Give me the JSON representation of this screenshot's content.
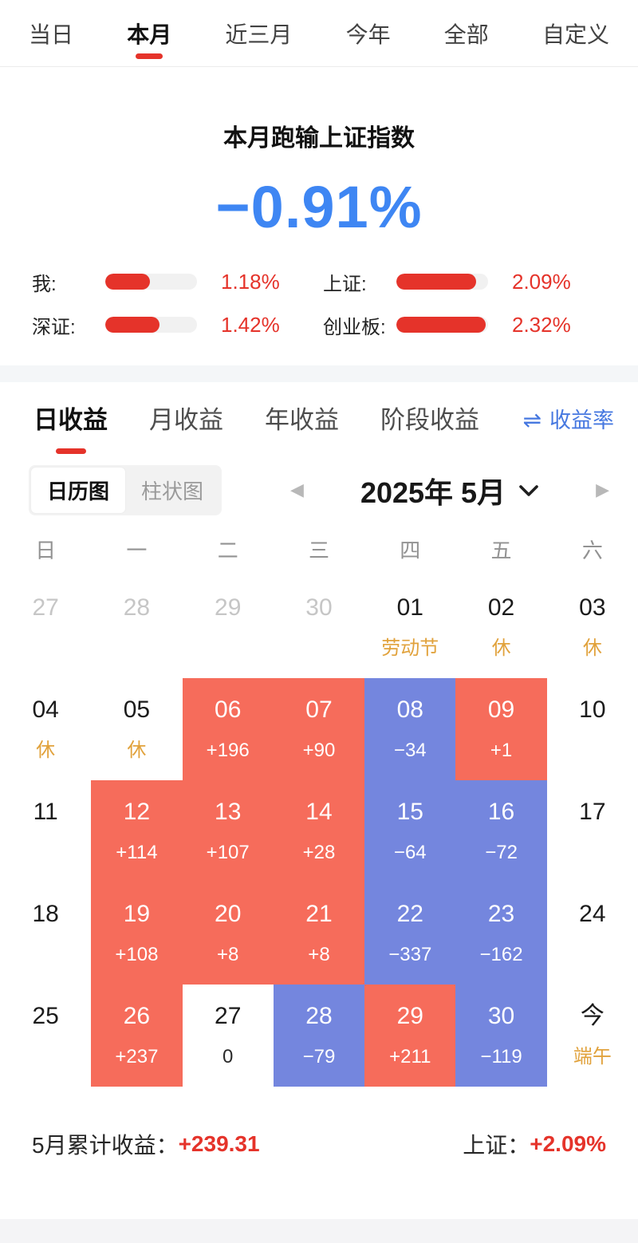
{
  "colors": {
    "accent_red": "#E5332A",
    "gain_cell_red": "#F66C5B",
    "loss_cell_blue": "#7486DE",
    "highlight_blue": "#3E86F3",
    "link_blue": "#4678E0",
    "holiday_orange": "#E1A23C"
  },
  "tabbar": {
    "items": [
      {
        "label": "当日",
        "cls": ""
      },
      {
        "label": "本月",
        "cls": "active"
      },
      {
        "label": "近三月",
        "cls": ""
      },
      {
        "label": "今年",
        "cls": ""
      },
      {
        "label": "全部",
        "cls": ""
      },
      {
        "label": "自定义",
        "cls": ""
      }
    ]
  },
  "summary": {
    "title": "本月跑输上证指数",
    "big_value": "−0.91%",
    "stats": [
      {
        "label": "我:",
        "value": "1.18%",
        "fill_pct": 49
      },
      {
        "label": "上证:",
        "value": "2.09%",
        "fill_pct": 87
      },
      {
        "label": "深证:",
        "value": "1.42%",
        "fill_pct": 59
      },
      {
        "label": "创业板:",
        "value": "2.32%",
        "fill_pct": 97
      }
    ]
  },
  "returns": {
    "tabs": [
      {
        "label": "日收益",
        "cls": "active"
      },
      {
        "label": "月收益",
        "cls": ""
      },
      {
        "label": "年收益",
        "cls": ""
      },
      {
        "label": "阶段收益",
        "cls": ""
      }
    ],
    "toggle_label": "收益率",
    "swap_icon": "⇌"
  },
  "controls": {
    "view_options": [
      {
        "label": "日历图",
        "cls": "on"
      },
      {
        "label": "柱状图",
        "cls": ""
      }
    ],
    "month_label": "2025年 5月",
    "prev_icon": "◀",
    "next_icon": "▶"
  },
  "calendar": {
    "weekdays": [
      "日",
      "一",
      "二",
      "三",
      "四",
      "五",
      "六"
    ],
    "rows": [
      {
        "cells": [
          {
            "date": "27",
            "cls": "prev",
            "sub": "",
            "subcls": ""
          },
          {
            "date": "28",
            "cls": "prev",
            "sub": "",
            "subcls": ""
          },
          {
            "date": "29",
            "cls": "prev",
            "sub": "",
            "subcls": ""
          },
          {
            "date": "30",
            "cls": "prev",
            "sub": "",
            "subcls": ""
          },
          {
            "date": "01",
            "cls": "",
            "sub": "劳动节",
            "subcls": "note"
          },
          {
            "date": "02",
            "cls": "",
            "sub": "休",
            "subcls": "note"
          },
          {
            "date": "03",
            "cls": "",
            "sub": "休",
            "subcls": "note"
          }
        ]
      },
      {
        "cells": [
          {
            "date": "04",
            "cls": "",
            "sub": "休",
            "subcls": "note"
          },
          {
            "date": "05",
            "cls": "",
            "sub": "休",
            "subcls": "note"
          },
          {
            "date": "06",
            "cls": "gain",
            "sub": "+196",
            "subcls": ""
          },
          {
            "date": "07",
            "cls": "gain",
            "sub": "+90",
            "subcls": ""
          },
          {
            "date": "08",
            "cls": "loss",
            "sub": "−34",
            "subcls": ""
          },
          {
            "date": "09",
            "cls": "gain",
            "sub": "+1",
            "subcls": ""
          },
          {
            "date": "10",
            "cls": "",
            "sub": "",
            "subcls": ""
          }
        ]
      },
      {
        "cells": [
          {
            "date": "11",
            "cls": "",
            "sub": "",
            "subcls": ""
          },
          {
            "date": "12",
            "cls": "gain",
            "sub": "+114",
            "subcls": ""
          },
          {
            "date": "13",
            "cls": "gain",
            "sub": "+107",
            "subcls": ""
          },
          {
            "date": "14",
            "cls": "gain",
            "sub": "+28",
            "subcls": ""
          },
          {
            "date": "15",
            "cls": "loss",
            "sub": "−64",
            "subcls": ""
          },
          {
            "date": "16",
            "cls": "loss",
            "sub": "−72",
            "subcls": ""
          },
          {
            "date": "17",
            "cls": "",
            "sub": "",
            "subcls": ""
          }
        ]
      },
      {
        "cells": [
          {
            "date": "18",
            "cls": "",
            "sub": "",
            "subcls": ""
          },
          {
            "date": "19",
            "cls": "gain",
            "sub": "+108",
            "subcls": ""
          },
          {
            "date": "20",
            "cls": "gain",
            "sub": "+8",
            "subcls": ""
          },
          {
            "date": "21",
            "cls": "gain",
            "sub": "+8",
            "subcls": ""
          },
          {
            "date": "22",
            "cls": "loss",
            "sub": "−337",
            "subcls": ""
          },
          {
            "date": "23",
            "cls": "loss",
            "sub": "−162",
            "subcls": ""
          },
          {
            "date": "24",
            "cls": "",
            "sub": "",
            "subcls": ""
          }
        ]
      },
      {
        "cells": [
          {
            "date": "25",
            "cls": "",
            "sub": "",
            "subcls": ""
          },
          {
            "date": "26",
            "cls": "gain",
            "sub": "+237",
            "subcls": ""
          },
          {
            "date": "27",
            "cls": "flat",
            "sub": "0",
            "subcls": ""
          },
          {
            "date": "28",
            "cls": "loss",
            "sub": "−79",
            "subcls": ""
          },
          {
            "date": "29",
            "cls": "gain",
            "sub": "+211",
            "subcls": ""
          },
          {
            "date": "30",
            "cls": "loss",
            "sub": "−119",
            "subcls": ""
          },
          {
            "date": "今",
            "cls": "",
            "sub": "端午",
            "subcls": "note"
          }
        ]
      }
    ]
  },
  "footer": {
    "left_label": "5月累计收益：",
    "left_value": "+239.31",
    "right_label": "上证：",
    "right_value": "+2.09%"
  }
}
